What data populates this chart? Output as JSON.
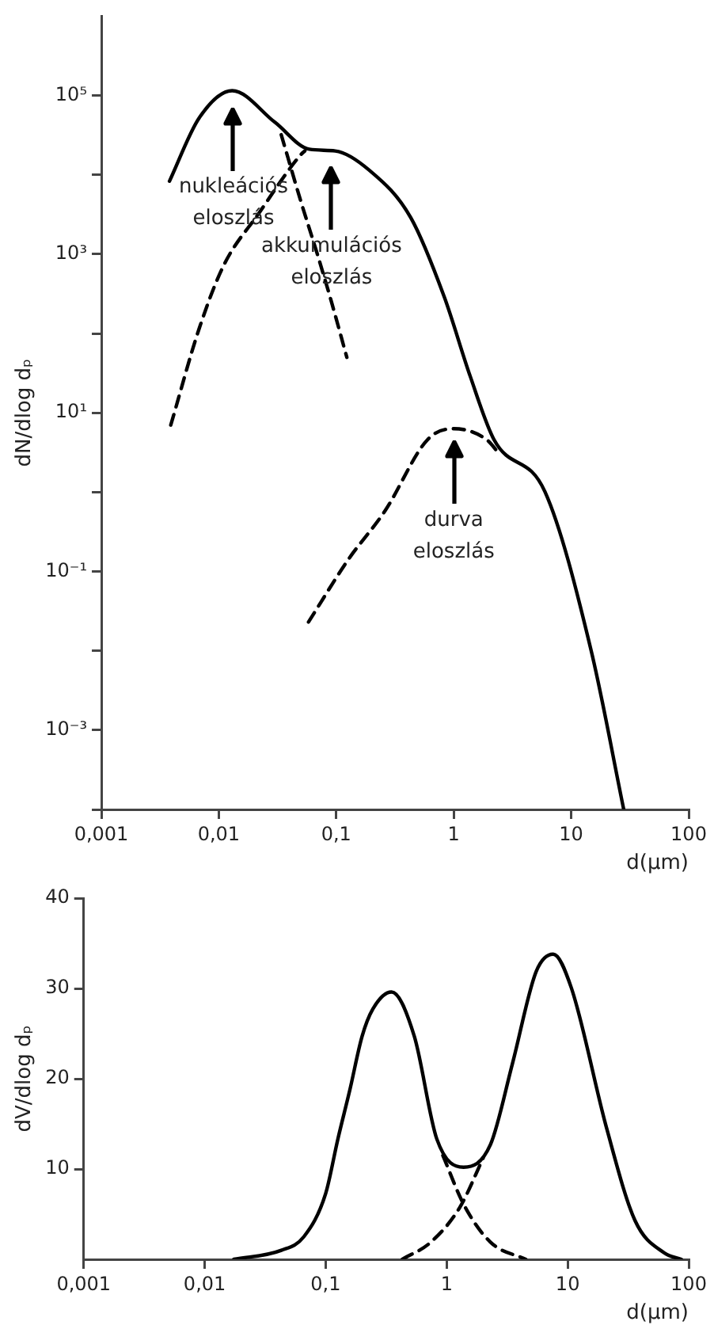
{
  "chart_data": [
    {
      "type": "line",
      "ylabel": "dN/dlog dₚ",
      "xlabel": "d(µm)",
      "log": "xy",
      "grid": false,
      "legend": false,
      "marker": "none",
      "xlim": [
        0.001,
        100
      ],
      "xticks": [
        {
          "value": 0.001,
          "label": "0,001"
        },
        {
          "value": 0.01,
          "label": "0,01"
        },
        {
          "value": 0.1,
          "label": "0,1"
        },
        1,
        10,
        100
      ],
      "ylim": [
        0.0001,
        1000000
      ],
      "yticks": [
        {
          "value": 0.0001,
          "label": null
        },
        {
          "value": 0.001,
          "label": "10⁻³"
        },
        {
          "value": 0.01,
          "label": null
        },
        {
          "value": 0.1,
          "label": "10⁻¹"
        },
        {
          "value": 1,
          "label": null
        },
        {
          "value": 10,
          "label": "10¹"
        },
        {
          "value": 100,
          "label": null
        },
        {
          "value": 1000,
          "label": "10³"
        },
        {
          "value": 10000,
          "label": null
        },
        {
          "value": 100000,
          "label": "10⁵"
        }
      ],
      "series": [
        {
          "color": "#000000",
          "line_style": "solid",
          "x": [
            0.0038,
            0.0068,
            0.013,
            0.03,
            0.059,
            0.098,
            0.19,
            0.43,
            0.83,
            1.38,
            2.2,
            6,
            14.8,
            28
          ],
          "values": [
            8300,
            52000,
            115000,
            46000,
            21000,
            20000,
            11500,
            2900,
            290,
            29,
            4.6,
            1,
            0.01,
            0.0001
          ]
        },
        {
          "color": "#000000",
          "line_style": "dashed",
          "x": [
            0.034,
            0.05,
            0.069,
            0.091,
            0.123
          ],
          "values": [
            32000,
            4600,
            1000,
            250,
            50
          ]
        },
        {
          "color": "#000000",
          "line_style": "dashed",
          "x": [
            0.0039,
            0.0068,
            0.011,
            0.022,
            0.05,
            0.054
          ],
          "values": [
            7,
            115,
            720,
            3300,
            18000,
            20000
          ]
        },
        {
          "color": "#000000",
          "line_style": "dashed",
          "x": [
            0.058,
            0.126,
            0.26,
            0.6,
            1,
            1.9,
            2.5
          ],
          "values": [
            0.023,
            0.14,
            0.58,
            4.6,
            6.3,
            4.6,
            2.9
          ]
        }
      ],
      "annotations": [
        "nukleációs eloszlás",
        "akkumulációs eloszlás",
        "durva eloszlás"
      ]
    },
    {
      "type": "line",
      "ylabel": "dV/dlog dₚ",
      "xlabel": "d(µm)",
      "log": "x",
      "grid": false,
      "legend": false,
      "marker": "none",
      "xlim": [
        0.001,
        100
      ],
      "xticks": [
        {
          "value": 0.001,
          "label": "0,001"
        },
        {
          "value": 0.01,
          "label": "0,01"
        },
        {
          "value": 0.1,
          "label": "0,1"
        },
        1,
        10,
        100
      ],
      "ylim": [
        0,
        40
      ],
      "yticks": [
        10,
        20,
        30,
        40
      ],
      "series": [
        {
          "color": "#000000",
          "line_style": "solid",
          "x": [
            0.0174,
            0.043,
            0.066,
            0.1,
            0.126,
            0.158,
            0.2,
            0.245,
            0.35,
            0.54,
            0.83,
            1.38,
            2.3,
            3.5,
            5.5,
            7.6,
            10.7,
            21,
            36,
            63,
            87
          ],
          "values": [
            0,
            1,
            2.5,
            7.3,
            13.3,
            18.7,
            24.7,
            27.7,
            29.6,
            24.7,
            13.3,
            10.2,
            12.7,
            21.7,
            31.9,
            33.8,
            30.1,
            14.5,
            4.3,
            0.7,
            0
          ]
        },
        {
          "color": "#000000",
          "line_style": "dashed",
          "x": [
            0.93,
            1.38,
            2.3,
            4.5
          ],
          "values": [
            11.5,
            6.1,
            1.9,
            0
          ]
        },
        {
          "color": "#000000",
          "line_style": "dashed",
          "x": [
            0.43,
            0.74,
            1.29,
            2
          ],
          "values": [
            0,
            1.9,
            5.8,
            11.2
          ]
        }
      ]
    }
  ]
}
